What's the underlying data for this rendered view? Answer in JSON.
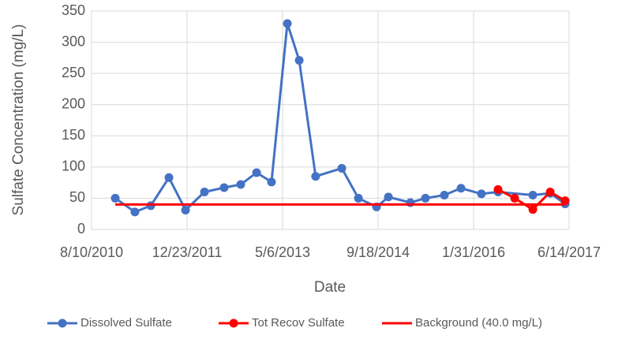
{
  "chart_data": {
    "type": "line",
    "y_label": "Sulfate Concentration  (mg/L)",
    "x_label": "Date",
    "xlim": [
      "8/10/2010",
      "6/14/2017"
    ],
    "xticks": [
      "8/10/2010",
      "12/23/2011",
      "5/6/2013",
      "9/18/2014",
      "1/31/2016",
      "6/14/2017"
    ],
    "ylim": [
      0,
      350
    ],
    "yticks": [
      0,
      50,
      100,
      150,
      200,
      250,
      300,
      350
    ],
    "grid": true,
    "legend": "bottom",
    "series": [
      {
        "name": "Dissolved Sulfate",
        "color": "#4472c4",
        "marker": true,
        "x": [
          "12/12/2010",
          "3/25/2011",
          "6/16/2011",
          "9/19/2011",
          "12/15/2011",
          "3/23/2012",
          "7/4/2012",
          "9/29/2012",
          "12/21/2012",
          "3/9/2013",
          "5/31/2013",
          "8/1/2013",
          "10/26/2013",
          "3/12/2014",
          "6/7/2014",
          "9/10/2014",
          "11/11/2014",
          "3/6/2015",
          "5/24/2015",
          "8/31/2015",
          "11/26/2015",
          "3/12/2016",
          "6/7/2016",
          "12/6/2016",
          "3/7/2017",
          "5/24/2017"
        ],
        "values": [
          50,
          28,
          38,
          83,
          31,
          60,
          67,
          72,
          91,
          76,
          330,
          271,
          85,
          98,
          50,
          36,
          52,
          43,
          50,
          55,
          66,
          57,
          60,
          55,
          58,
          41
        ]
      },
      {
        "name": "Tot Recov Sulfate",
        "color": "#ff0000",
        "marker": true,
        "x": [
          "6/7/2016",
          "9/2/2016",
          "12/6/2016",
          "3/7/2017",
          "5/24/2017"
        ],
        "values": [
          64,
          50,
          32,
          60,
          46
        ]
      },
      {
        "name": "Background (40.0 mg/L)",
        "color": "#ff0000",
        "marker": false,
        "x": [
          "12/12/2010",
          "5/24/2017"
        ],
        "values": [
          40,
          40
        ]
      }
    ]
  }
}
